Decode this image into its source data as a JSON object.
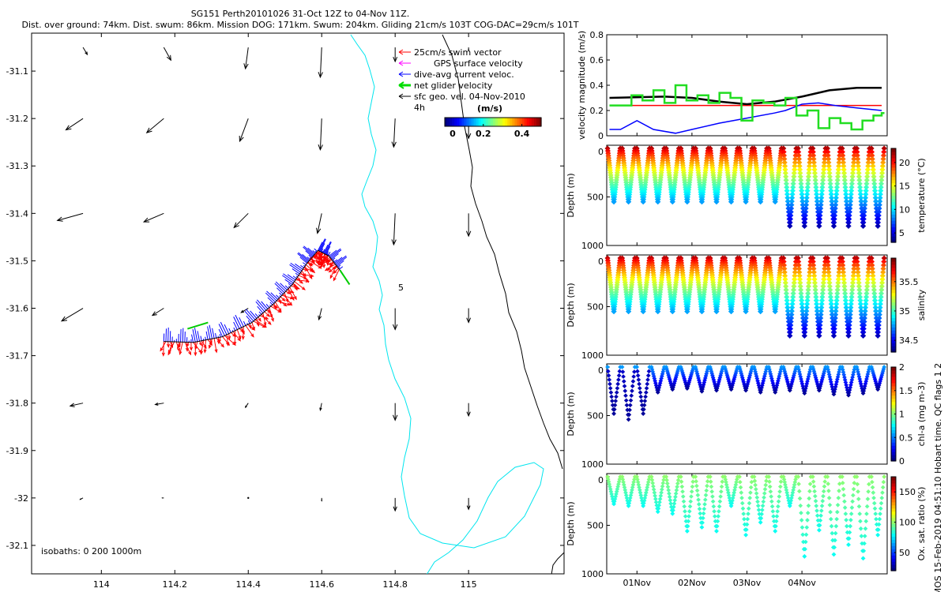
{
  "chart_data": [
    {
      "type": "quiver-map",
      "title_lines": [
        "SG151 Perth20101026 31-Oct 12Z to 04-Nov 11Z.",
        "Dist. over ground: 74km. Dist. swum: 86km. Mission DOG: 171km. Swum: 204km. Gliding 21cm/s 103T COG-DAC=29cm/s 101T"
      ],
      "x_ticks": [
        114,
        114.2,
        114.4,
        114.6,
        114.8,
        115
      ],
      "x_tick_labels": [
        "114",
        "114.2",
        "114.4",
        "114.6",
        "114.8",
        "115"
      ],
      "y_ticks": [
        -31.1,
        -31.2,
        -31.3,
        -31.4,
        -31.5,
        -31.6,
        -31.7,
        -31.8,
        -31.9,
        -32,
        -32.1
      ],
      "y_tick_labels": [
        "-31.1",
        "-31.2",
        "-31.3",
        "-31.4",
        "-31.5",
        "-31.6",
        "-31.7",
        "-31.8",
        "-31.9",
        "-32",
        "-32.1"
      ],
      "xlim": [
        113.81,
        115.26
      ],
      "ylim": [
        -32.16,
        -31.02
      ],
      "legend": [
        {
          "label": "25cm/s swim vector",
          "color": "#ff0000"
        },
        {
          "label": "GPS surface velocity",
          "color": "#ff00ff"
        },
        {
          "label": "dive-avg current veloc.",
          "color": "#0000ff"
        },
        {
          "label": "net glider velocity",
          "color": "#00dd00"
        },
        {
          "label": "sfc geo. vel. 04-Nov-2010",
          "color": "#000000"
        }
      ],
      "colorbar_label": "(m/s)",
      "colorbar_ticks": [
        "0",
        "0.2",
        "0.4"
      ],
      "colorbar_range": [
        0,
        0.5
      ],
      "label_4h": "4h",
      "contour_label": "5",
      "isobaths_note": "isobaths: 0   200  1000m",
      "glider_track": [
        {
          "lon": 114.17,
          "lat": -31.67
        },
        {
          "lon": 114.25,
          "lat": -31.672
        },
        {
          "lon": 114.33,
          "lat": -31.66
        },
        {
          "lon": 114.41,
          "lat": -31.63
        },
        {
          "lon": 114.47,
          "lat": -31.59
        },
        {
          "lon": 114.52,
          "lat": -31.55
        },
        {
          "lon": 114.56,
          "lat": -31.505
        },
        {
          "lon": 114.59,
          "lat": -31.478
        },
        {
          "lon": 114.62,
          "lat": -31.49
        },
        {
          "lon": 114.65,
          "lat": -31.52
        }
      ],
      "geo_velocity": {
        "lons": [
          113.95,
          114.17,
          114.4,
          114.6,
          114.8,
          115.0
        ],
        "lats": [
          -31.05,
          -31.2,
          -31.4,
          -31.6,
          -31.8,
          -32.0
        ],
        "u_cm_s": [
          [
            3,
            5,
            -2,
            -1,
            0,
            0
          ],
          [
            -12,
            -12,
            -6,
            -1,
            -1,
            0
          ],
          [
            -18,
            -14,
            -10,
            -3,
            -1,
            0
          ],
          [
            -15,
            -8,
            -5,
            -2,
            0,
            0
          ],
          [
            -9,
            -6,
            -2,
            -1,
            0,
            0
          ],
          [
            -2,
            -1,
            0,
            0,
            0,
            0
          ]
        ],
        "v_cm_s": [
          [
            -5,
            -9,
            -15,
            -21,
            -10,
            -2
          ],
          [
            -8,
            -10,
            -16,
            -22,
            -20,
            -14
          ],
          [
            -5,
            -6,
            -10,
            -14,
            -22,
            -16
          ],
          [
            -9,
            -5,
            -3,
            -8,
            -15,
            -10
          ],
          [
            -2,
            -1,
            -3,
            -5,
            -12,
            -9
          ],
          [
            -1,
            0,
            0,
            -2,
            -9,
            -8
          ]
        ]
      }
    },
    {
      "type": "line",
      "ylabel": "velocity magnitude (m/s)",
      "ylim": [
        0,
        0.8
      ],
      "y_ticks": [
        "0",
        "0.2",
        "0.4",
        "0.6",
        "0.8"
      ],
      "x_days": [
        0,
        1,
        2,
        3,
        4
      ],
      "series": [
        {
          "name": "swim vector",
          "color": "#ff0000",
          "x": [
            -0.5,
            4.45
          ],
          "y": [
            0.24,
            0.24
          ]
        },
        {
          "name": "sfc geo. vel.",
          "color": "#000000",
          "x": [
            -0.5,
            0.5,
            1.0,
            1.5,
            2.0,
            2.5,
            3.0,
            3.5,
            4.0,
            4.45
          ],
          "y": [
            0.3,
            0.31,
            0.3,
            0.27,
            0.25,
            0.27,
            0.31,
            0.36,
            0.38,
            0.38
          ]
        },
        {
          "name": "dive-avg current",
          "color": "#0000ff",
          "x": [
            -0.5,
            -0.3,
            0.0,
            0.3,
            0.7,
            1.0,
            1.5,
            2.0,
            2.5,
            2.7,
            3.0,
            3.3,
            3.6,
            4.0,
            4.45
          ],
          "y": [
            0.05,
            0.05,
            0.12,
            0.05,
            0.02,
            0.05,
            0.1,
            0.14,
            0.18,
            0.2,
            0.25,
            0.26,
            0.24,
            0.22,
            0.2
          ]
        },
        {
          "name": "net glider",
          "color": "#22dd22",
          "x": [
            -0.5,
            -0.1,
            0.1,
            0.3,
            0.5,
            0.7,
            0.9,
            1.1,
            1.3,
            1.5,
            1.7,
            1.9,
            2.1,
            2.3,
            2.5,
            2.7,
            2.9,
            3.1,
            3.3,
            3.5,
            3.7,
            3.9,
            4.1,
            4.3,
            4.45
          ],
          "y": [
            0.24,
            0.32,
            0.28,
            0.36,
            0.26,
            0.4,
            0.28,
            0.32,
            0.26,
            0.34,
            0.3,
            0.12,
            0.28,
            0.26,
            0.24,
            0.3,
            0.16,
            0.2,
            0.06,
            0.14,
            0.1,
            0.05,
            0.12,
            0.16,
            0.18
          ]
        }
      ]
    },
    {
      "type": "scatter",
      "ylabel": "Depth (m)",
      "y_ticks": [
        "0",
        "500",
        "1000"
      ],
      "colorbar_label": "temperature (°C)",
      "colorbar_ticks": [
        "5",
        "10",
        "15",
        "20"
      ],
      "colorbar_range": [
        3,
        23
      ],
      "colormap": "jet",
      "dive_count": 19,
      "max_depth_m": [
        550,
        550,
        550,
        550,
        550,
        550,
        550,
        550,
        550,
        550,
        550,
        550,
        800,
        800,
        800,
        800,
        800,
        800,
        800
      ],
      "surface_value": 22,
      "deep_value": 4
    },
    {
      "type": "scatter",
      "ylabel": "Depth (m)",
      "y_ticks": [
        "0",
        "500",
        "1000"
      ],
      "colorbar_label": "salinity",
      "colorbar_ticks": [
        "34.5",
        "35",
        "35.5"
      ],
      "colorbar_range": [
        34.3,
        35.9
      ],
      "colormap": "jet",
      "dive_count": 19,
      "max_depth_m": [
        550,
        550,
        550,
        550,
        550,
        550,
        550,
        550,
        550,
        550,
        550,
        550,
        800,
        800,
        800,
        800,
        800,
        800,
        800
      ],
      "surface_value": 35.8,
      "deep_value": 34.4
    },
    {
      "type": "scatter",
      "ylabel": "Depth (m)",
      "y_ticks": [
        "0",
        "500",
        "1000"
      ],
      "colorbar_label": "chl-a (mg m-3)",
      "colorbar_ticks": [
        "0",
        "0.5",
        "1",
        "1.5",
        "2"
      ],
      "colorbar_range": [
        0,
        2
      ],
      "colormap": "jet",
      "dive_count": 19,
      "max_depth_m": [
        480,
        540,
        480,
        260,
        230,
        220,
        250,
        240,
        230,
        240,
        260,
        260,
        240,
        270,
        240,
        280,
        290,
        270,
        230
      ],
      "surface_value": 0.35,
      "deep_value": 0.05
    },
    {
      "type": "scatter",
      "ylabel": "Depth (m)",
      "y_ticks": [
        "0",
        "500",
        "1000"
      ],
      "colorbar_label": "Ox. sat. ratio (%)",
      "colorbar_ticks": [
        "50",
        "100",
        "150"
      ],
      "colorbar_range": [
        20,
        175
      ],
      "colormap": "jet",
      "dive_count": 19,
      "max_depth_m": [
        280,
        300,
        300,
        360,
        380,
        560,
        520,
        560,
        300,
        600,
        470,
        560,
        300,
        820,
        550,
        800,
        700,
        840,
        600
      ],
      "surface_value": 100,
      "deep_value": 60
    }
  ],
  "time_axis": {
    "labels": [
      "01Nov",
      "02Nov",
      "03Nov",
      "04Nov"
    ],
    "x_days": [
      0,
      1,
      2,
      3
    ],
    "xlim_days": [
      -0.55,
      4.55
    ]
  },
  "side_note": "© IMOS 15-Feb-2019 04:51:10 Hobart time. QC flags 1  2"
}
